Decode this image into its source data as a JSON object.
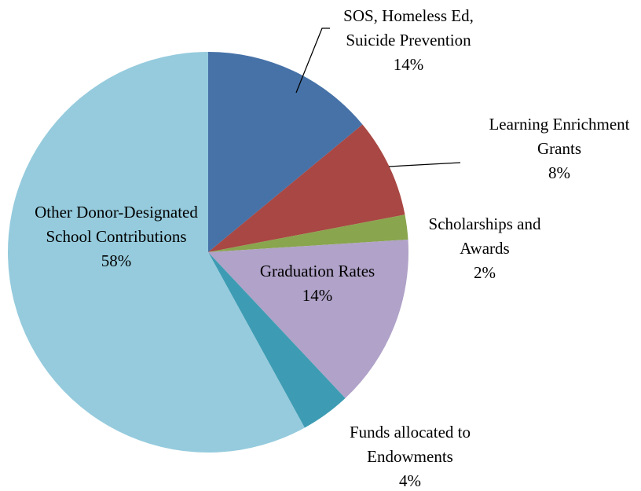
{
  "chart_data": {
    "type": "pie",
    "categories": [
      "SOS, Homeless Ed, Suicide Prevention",
      "Learning Enrichment Grants",
      "Scholarships and Awards",
      "Graduation Rates",
      "Funds allocated to Endowments",
      "Other Donor-Designated School Contributions"
    ],
    "values": [
      14,
      8,
      2,
      14,
      4,
      58
    ],
    "value_labels": [
      "14%",
      "8%",
      "2%",
      "14%",
      "4%",
      "58%"
    ],
    "colors": [
      "#4672a8",
      "#a84743",
      "#89a54e",
      "#b0a2c8",
      "#3d9cb3",
      "#95cbdd"
    ]
  }
}
